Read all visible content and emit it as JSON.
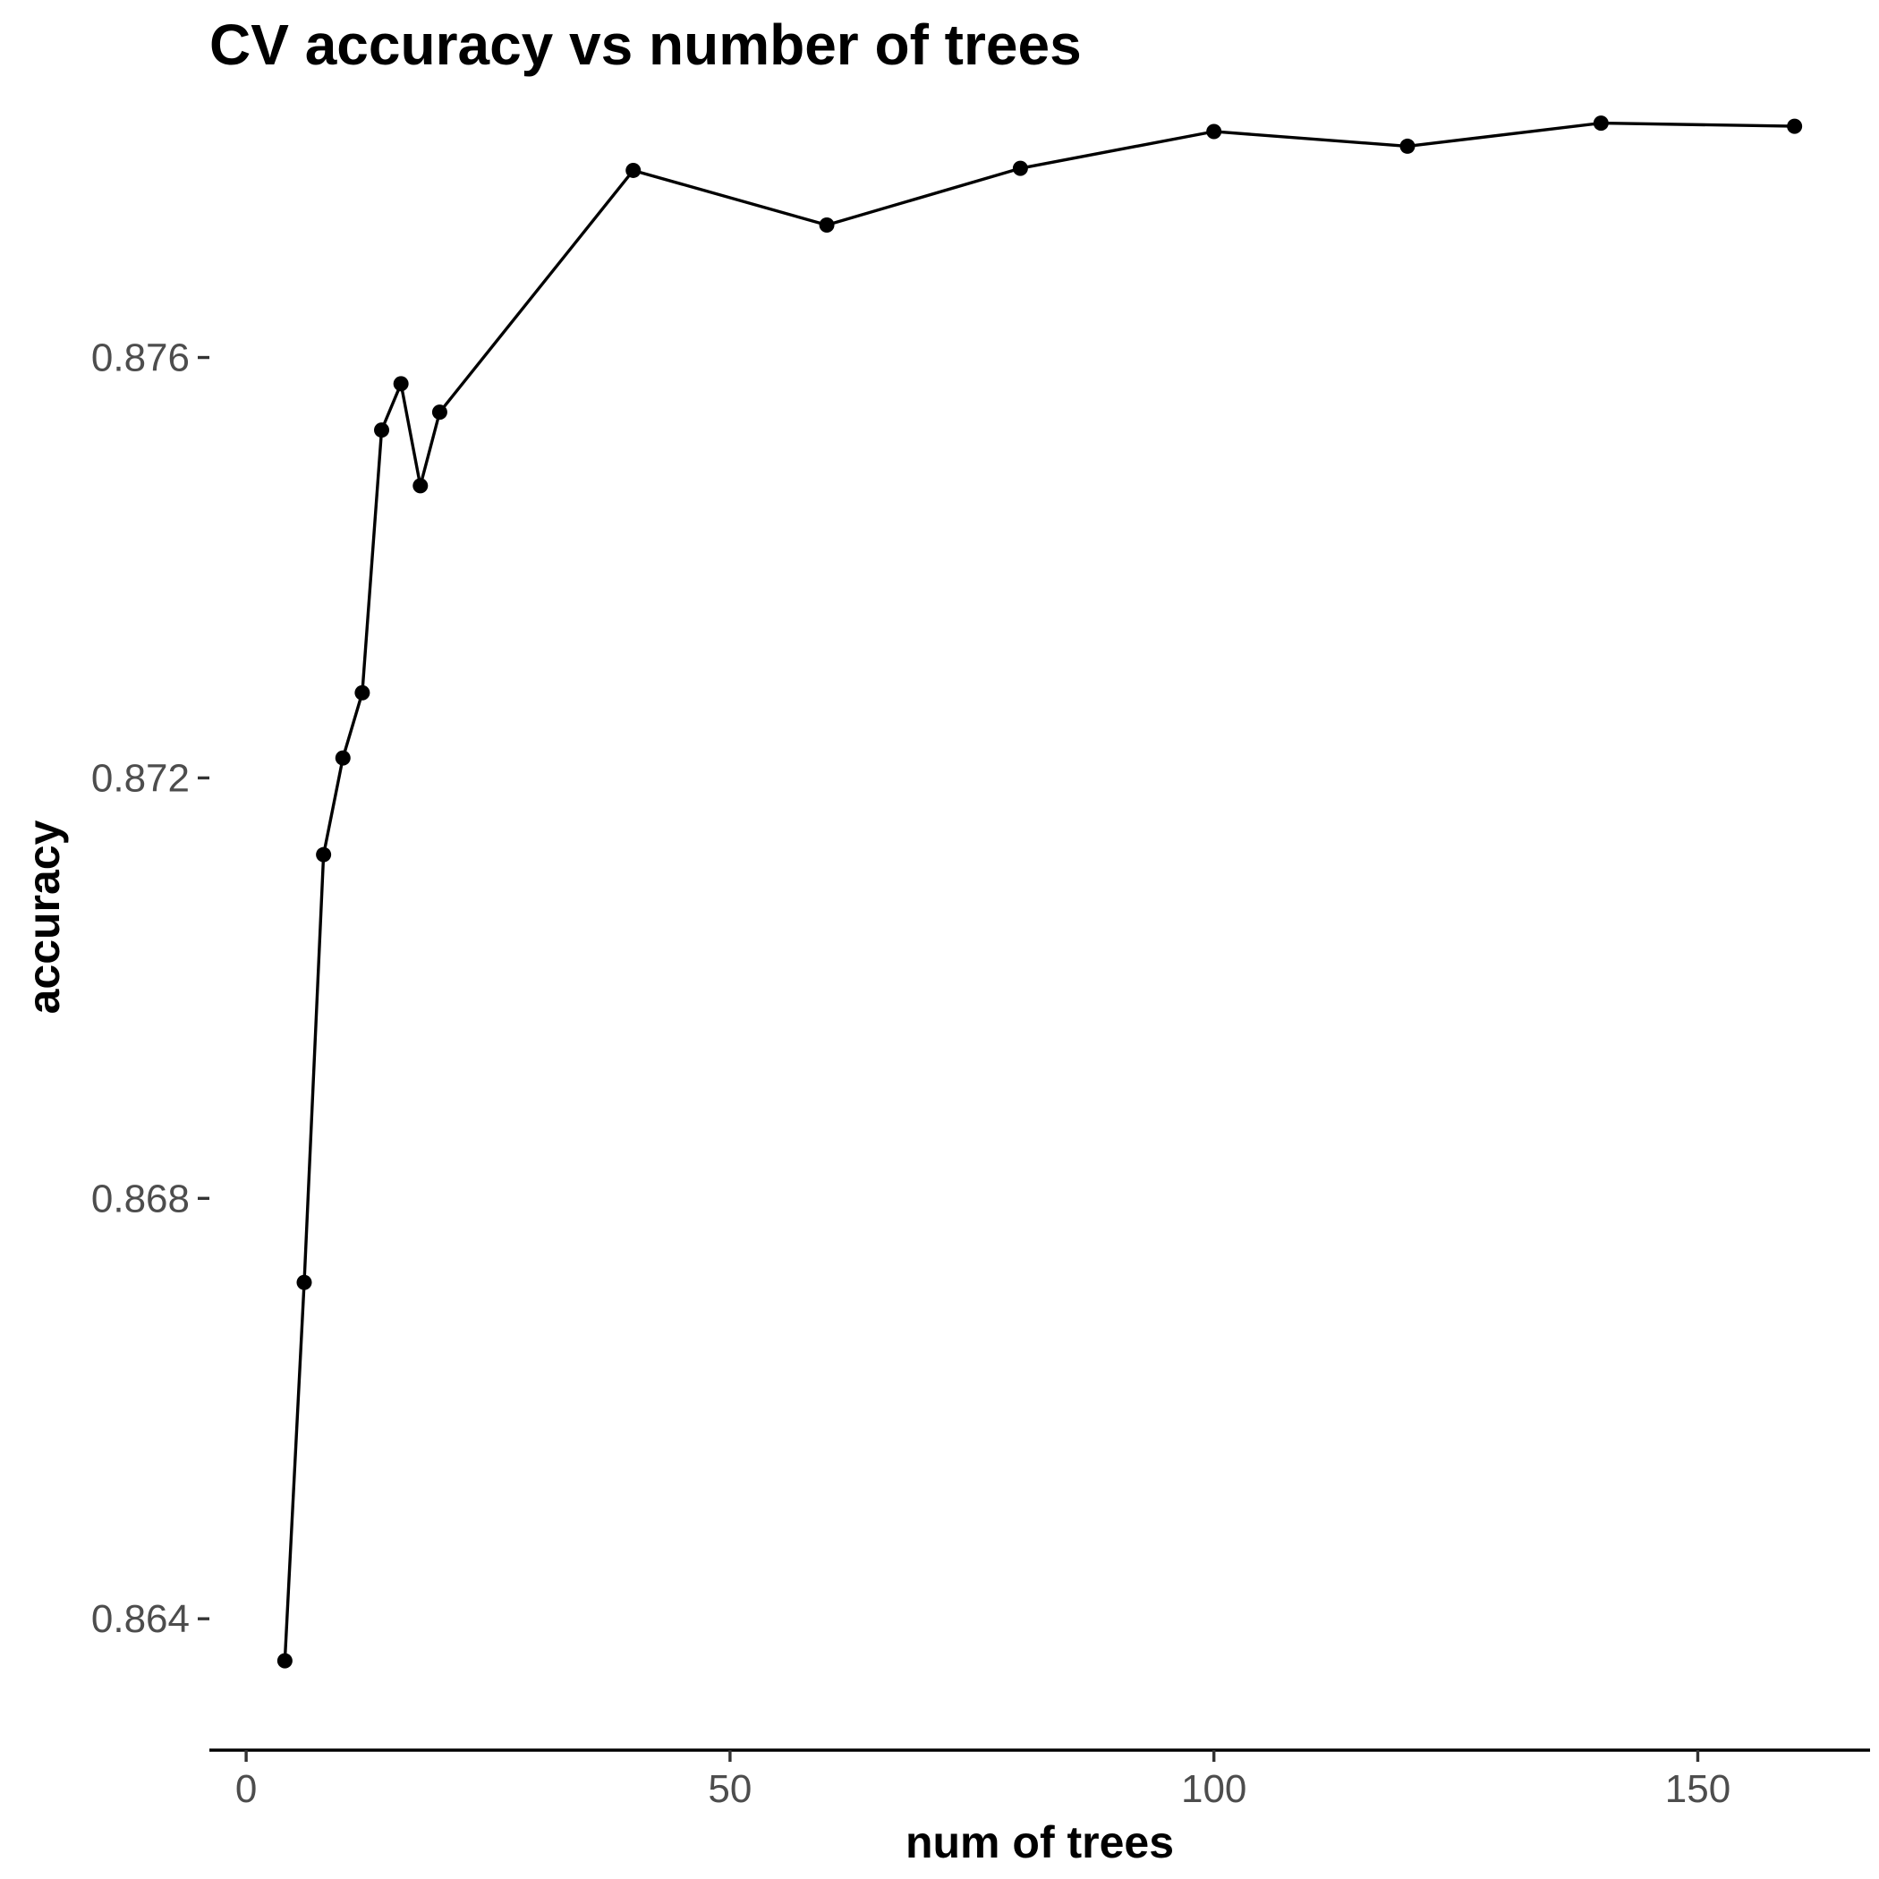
{
  "chart_data": {
    "type": "line",
    "title": "CV accuracy vs number of trees",
    "xlabel": "num of trees",
    "ylabel": "accuracy",
    "xlim": [
      -3.8,
      167.8
    ],
    "ylim": [
      0.86275,
      0.87855
    ],
    "x_ticks": [
      0,
      50,
      100,
      150
    ],
    "x_tick_labels": [
      "0",
      "50",
      "100",
      "150"
    ],
    "y_ticks": [
      0.864,
      0.868,
      0.872,
      0.876
    ],
    "y_tick_labels": [
      "0.864",
      "0.868",
      "0.872",
      "0.876"
    ],
    "grid": false,
    "legend": "none",
    "series": [
      {
        "x": [
          4,
          6,
          8,
          10,
          12,
          14,
          16,
          18,
          20,
          40,
          60,
          80,
          100,
          120,
          140,
          160
        ],
        "y": [
          0.8636,
          0.8672,
          0.87127,
          0.87219,
          0.87281,
          0.87531,
          0.87575,
          0.87478,
          0.87548,
          0.87778,
          0.87726,
          0.8778,
          0.87815,
          0.87801,
          0.87823,
          0.8782
        ],
        "color": "#000000"
      }
    ]
  }
}
